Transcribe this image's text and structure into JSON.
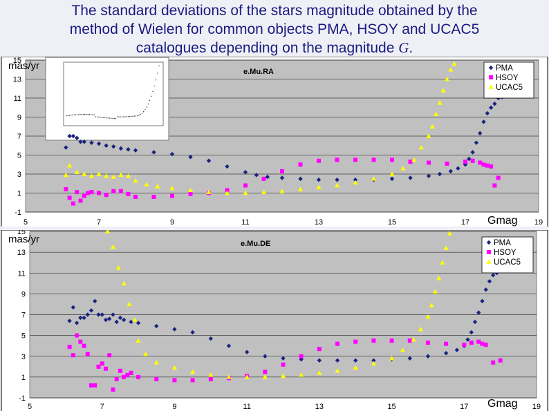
{
  "slide": {
    "title_line1": "The standard deviations of the stars magnitude obtained by the",
    "title_line2": "method of Wielen for common objects PMA, HSOY and UCAC5",
    "title_line3_prefix": "catalogues depending on the magnitude ",
    "title_line3_var": "G",
    "title_line3_suffix": "."
  },
  "colors": {
    "PMA": "#1a237e",
    "HSOY": "#ff00ff",
    "UCAC5": "#ffff00",
    "plot_bg": "#c0c0c0"
  },
  "chart_data": [
    {
      "type": "scatter",
      "title": "e.Mu.RA",
      "xlabel": "Gmag",
      "ylabel": "mas/yr",
      "xlim": [
        5,
        19
      ],
      "ylim": [
        -1,
        15
      ],
      "xticks": [
        5,
        7,
        9,
        11,
        13,
        15,
        17,
        19
      ],
      "yticks": [
        -1,
        1,
        3,
        5,
        7,
        9,
        11,
        13,
        15
      ],
      "grid": "horizontal",
      "legend_position": "top-right",
      "series": [
        {
          "name": "PMA",
          "marker": "diamond",
          "x": [
            6.1,
            6.2,
            6.3,
            6.4,
            6.5,
            6.6,
            6.8,
            7.0,
            7.2,
            7.4,
            7.6,
            7.8,
            8.0,
            8.5,
            9.0,
            9.5,
            10.0,
            10.5,
            11.0,
            11.3,
            11.6,
            12.0,
            12.5,
            13.0,
            13.5,
            14.0,
            14.5,
            15.0,
            15.5,
            16.0,
            16.3,
            16.6,
            16.8,
            17.0,
            17.1,
            17.2,
            17.3,
            17.4,
            17.5,
            17.6,
            17.7,
            17.8,
            17.9,
            18.0
          ],
          "y": [
            5.8,
            7.0,
            7.0,
            6.8,
            6.4,
            6.4,
            6.3,
            6.2,
            6.0,
            5.9,
            5.7,
            5.6,
            5.5,
            5.3,
            5.1,
            4.8,
            4.4,
            3.8,
            3.2,
            2.9,
            2.7,
            2.6,
            2.5,
            2.4,
            2.4,
            2.4,
            2.4,
            2.5,
            2.6,
            2.8,
            3.0,
            3.3,
            3.6,
            4.0,
            4.6,
            5.3,
            6.3,
            7.3,
            8.5,
            9.4,
            10.0,
            10.4,
            11.0,
            11.1
          ]
        },
        {
          "name": "HSOY",
          "marker": "square",
          "x": [
            6.1,
            6.2,
            6.3,
            6.4,
            6.5,
            6.6,
            6.7,
            6.8,
            7.0,
            7.2,
            7.4,
            7.6,
            7.8,
            8.0,
            8.5,
            9.0,
            9.5,
            10.0,
            10.5,
            11.0,
            11.5,
            12.0,
            12.5,
            13.0,
            13.5,
            14.0,
            14.5,
            15.0,
            15.5,
            16.0,
            16.5,
            17.0,
            17.2,
            17.4,
            17.5,
            17.6,
            17.7,
            17.8,
            17.9
          ],
          "y": [
            1.4,
            0.5,
            -0.1,
            1.1,
            0.2,
            0.7,
            1.0,
            1.1,
            1.0,
            0.8,
            1.2,
            1.2,
            0.9,
            0.6,
            0.6,
            0.7,
            0.9,
            1.0,
            1.3,
            1.8,
            2.5,
            3.3,
            4.0,
            4.4,
            4.5,
            4.5,
            4.5,
            4.5,
            4.3,
            4.2,
            4.1,
            4.3,
            4.4,
            4.2,
            4.0,
            3.9,
            3.8,
            1.8,
            2.6
          ]
        },
        {
          "name": "UCAC5",
          "marker": "triangle",
          "x": [
            6.1,
            6.2,
            6.4,
            6.6,
            6.8,
            7.0,
            7.2,
            7.4,
            7.6,
            7.8,
            8.0,
            8.3,
            8.6,
            9.0,
            9.5,
            10.0,
            10.5,
            11.0,
            11.5,
            12.0,
            12.5,
            13.0,
            13.5,
            14.0,
            14.5,
            15.0,
            15.3,
            15.6,
            15.8,
            16.0,
            16.1,
            16.2,
            16.3,
            16.4,
            16.5,
            16.6,
            16.7
          ],
          "y": [
            2.9,
            3.9,
            3.2,
            3.0,
            2.8,
            3.0,
            2.8,
            2.7,
            2.9,
            2.8,
            2.3,
            1.9,
            1.7,
            1.5,
            1.3,
            1.1,
            1.0,
            1.0,
            1.1,
            1.2,
            1.4,
            1.6,
            1.8,
            2.1,
            2.5,
            3.0,
            3.6,
            4.5,
            5.8,
            7.0,
            8.0,
            9.3,
            10.5,
            11.8,
            13.0,
            14.0,
            14.6
          ]
        }
      ]
    },
    {
      "type": "scatter",
      "title": "e.Mu.DE",
      "xlabel": "Gmag",
      "ylabel": "mas/yr",
      "xlim": [
        5,
        19
      ],
      "ylim": [
        -1,
        15
      ],
      "xticks": [
        5,
        7,
        9,
        11,
        13,
        15,
        17,
        19
      ],
      "yticks": [
        -1,
        1,
        3,
        5,
        7,
        9,
        11,
        13,
        15
      ],
      "grid": "horizontal",
      "legend_position": "top-right",
      "series": [
        {
          "name": "PMA",
          "marker": "diamond",
          "x": [
            6.1,
            6.2,
            6.3,
            6.4,
            6.5,
            6.6,
            6.7,
            6.8,
            6.9,
            7.0,
            7.1,
            7.2,
            7.3,
            7.4,
            7.5,
            7.6,
            7.8,
            8.0,
            8.5,
            9.0,
            9.5,
            10.0,
            10.5,
            11.0,
            11.5,
            12.0,
            12.5,
            13.0,
            13.5,
            14.0,
            14.5,
            15.0,
            15.5,
            16.0,
            16.5,
            16.8,
            17.0,
            17.1,
            17.2,
            17.3,
            17.4,
            17.5,
            17.6,
            17.7,
            17.8,
            17.9,
            18.0
          ],
          "y": [
            6.4,
            7.7,
            6.2,
            6.7,
            6.7,
            7.0,
            7.4,
            8.3,
            7.0,
            7.0,
            6.5,
            6.6,
            7.0,
            6.3,
            6.7,
            6.5,
            6.3,
            6.2,
            5.9,
            5.6,
            5.3,
            4.7,
            4.0,
            3.4,
            3.0,
            2.8,
            2.7,
            2.6,
            2.6,
            2.6,
            2.6,
            2.7,
            2.8,
            3.0,
            3.3,
            3.6,
            4.0,
            4.6,
            5.3,
            6.3,
            7.2,
            8.3,
            9.4,
            10.2,
            10.8,
            11.0,
            11.3
          ]
        },
        {
          "name": "HSOY",
          "marker": "square",
          "x": [
            6.1,
            6.2,
            6.3,
            6.4,
            6.5,
            6.6,
            6.7,
            6.8,
            6.9,
            7.0,
            7.1,
            7.2,
            7.3,
            7.4,
            7.5,
            7.6,
            7.7,
            7.8,
            8.0,
            8.5,
            9.0,
            9.5,
            10.0,
            10.5,
            11.0,
            11.5,
            12.0,
            12.5,
            13.0,
            13.5,
            14.0,
            14.5,
            15.0,
            15.5,
            16.0,
            16.5,
            17.0,
            17.2,
            17.4,
            17.5,
            17.6,
            17.8,
            18.0
          ],
          "y": [
            3.9,
            3.1,
            5.0,
            4.4,
            4.0,
            3.2,
            0.2,
            0.2,
            2.0,
            2.3,
            1.8,
            3.1,
            -0.2,
            0.8,
            1.6,
            1.0,
            1.2,
            1.4,
            1.0,
            0.8,
            0.7,
            0.7,
            0.8,
            0.9,
            1.1,
            1.5,
            2.2,
            3.0,
            3.7,
            4.2,
            4.4,
            4.5,
            4.5,
            4.5,
            4.3,
            4.2,
            4.1,
            4.3,
            4.4,
            4.2,
            4.1,
            2.4,
            2.6
          ]
        },
        {
          "name": "UCAC5",
          "marker": "triangle",
          "x": [
            7.0,
            7.15,
            7.3,
            7.45,
            7.6,
            7.75,
            7.9,
            8.0,
            8.2,
            8.5,
            9.0,
            9.5,
            10.0,
            10.5,
            11.0,
            11.5,
            12.0,
            12.5,
            13.0,
            13.5,
            14.0,
            14.5,
            15.0,
            15.3,
            15.6,
            15.8,
            16.0,
            16.1,
            16.2,
            16.3,
            16.4,
            16.5,
            16.6,
            16.7
          ],
          "y": [
            16.0,
            15.0,
            13.5,
            11.5,
            10.0,
            8.0,
            6.5,
            4.5,
            3.2,
            2.4,
            1.9,
            1.5,
            1.2,
            1.0,
            1.0,
            1.0,
            1.1,
            1.2,
            1.4,
            1.6,
            1.9,
            2.3,
            2.8,
            3.6,
            4.6,
            5.6,
            6.8,
            7.9,
            9.2,
            10.5,
            12.0,
            13.4,
            14.8,
            16.0
          ]
        }
      ],
      "clip_note": ""
    }
  ]
}
